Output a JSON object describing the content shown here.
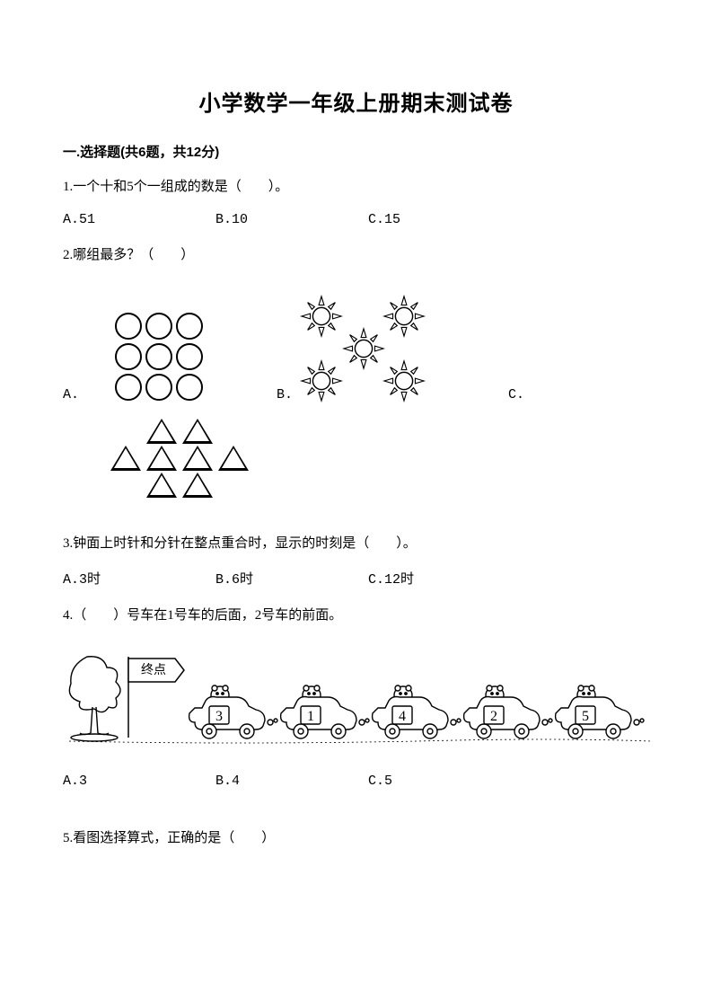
{
  "title": "小学数学一年级上册期末测试卷",
  "section1": {
    "header": "一.选择题(共6题，共12分)",
    "q1": {
      "text": "1.一个十和5个一组成的数是（　　）。",
      "optA": "A.51",
      "optB": "B.10",
      "optC": "C.15"
    },
    "q2": {
      "text": "2.哪组最多？（　　）",
      "lblA": "A.",
      "lblB": "B.",
      "lblC": "C.",
      "circles": {
        "count": 9,
        "stroke": "#000000",
        "layout": "3x3"
      },
      "suns": {
        "count": 5,
        "stroke": "#000000"
      },
      "triangles": {
        "count": 8,
        "stroke": "#000000",
        "rows": [
          2,
          4,
          2
        ]
      }
    },
    "q3": {
      "text": "3.钟面上时针和分针在整点重合时，显示的时刻是（　　）。",
      "optA": "A.3时",
      "optB": "B.6时",
      "optC": "C.12时"
    },
    "q4": {
      "text": "4.（　　）号车在1号车的后面，2号车的前面。",
      "optA": "A.3",
      "optB": "B.4",
      "optC": "C.5",
      "flag_label": "终点",
      "car_numbers": [
        "3",
        "1",
        "4",
        "2",
        "5"
      ],
      "stroke": "#000000",
      "fill": "#ffffff"
    },
    "q5": {
      "text": "5.看图选择算式，正确的是（　　）"
    }
  },
  "style": {
    "title_fontsize": 24,
    "body_fontsize": 15,
    "text_color": "#000000",
    "background_color": "#ffffff"
  }
}
